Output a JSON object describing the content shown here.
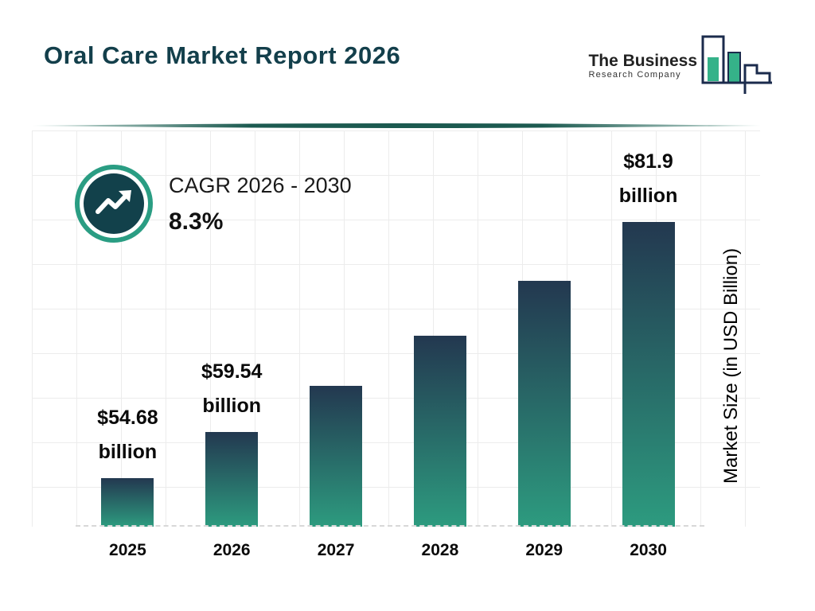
{
  "header": {
    "title": "Oral Care Market Report 2026",
    "logo": {
      "line1": "The Business",
      "line2": "Research Company"
    }
  },
  "cagr": {
    "label": "CAGR 2026 - 2030",
    "value": "8.3%"
  },
  "ylabel": "Market Size (in USD Billion)",
  "colors": {
    "title_color": "#133f4b",
    "bar_top": "#233850",
    "bar_bottom": "#2d9b7f",
    "accent_teal": "#2a9d83",
    "icon_dark": "#12414b",
    "logo_navy": "#1b2b4c",
    "logo_teal": "#35b289"
  },
  "chart_data": {
    "type": "bar",
    "title": "Oral Care Market Report 2026",
    "categories": [
      "2025",
      "2026",
      "2027",
      "2028",
      "2029",
      "2030"
    ],
    "values": [
      54.68,
      59.54,
      64.48,
      69.83,
      75.63,
      81.9
    ],
    "data_labels": [
      {
        "line1": "$54.68",
        "line2": "billion"
      },
      {
        "line1": "$59.54",
        "line2": "billion"
      },
      null,
      null,
      null,
      {
        "line1": "$81.9",
        "line2": "billion"
      }
    ],
    "xlabel": "",
    "ylabel": "Market Size (in USD Billion)",
    "ylim": [
      49.5,
      82.5
    ],
    "grid": true,
    "legend": false,
    "cagr_annotation": "CAGR 2026 - 2030 : 8.3%"
  }
}
